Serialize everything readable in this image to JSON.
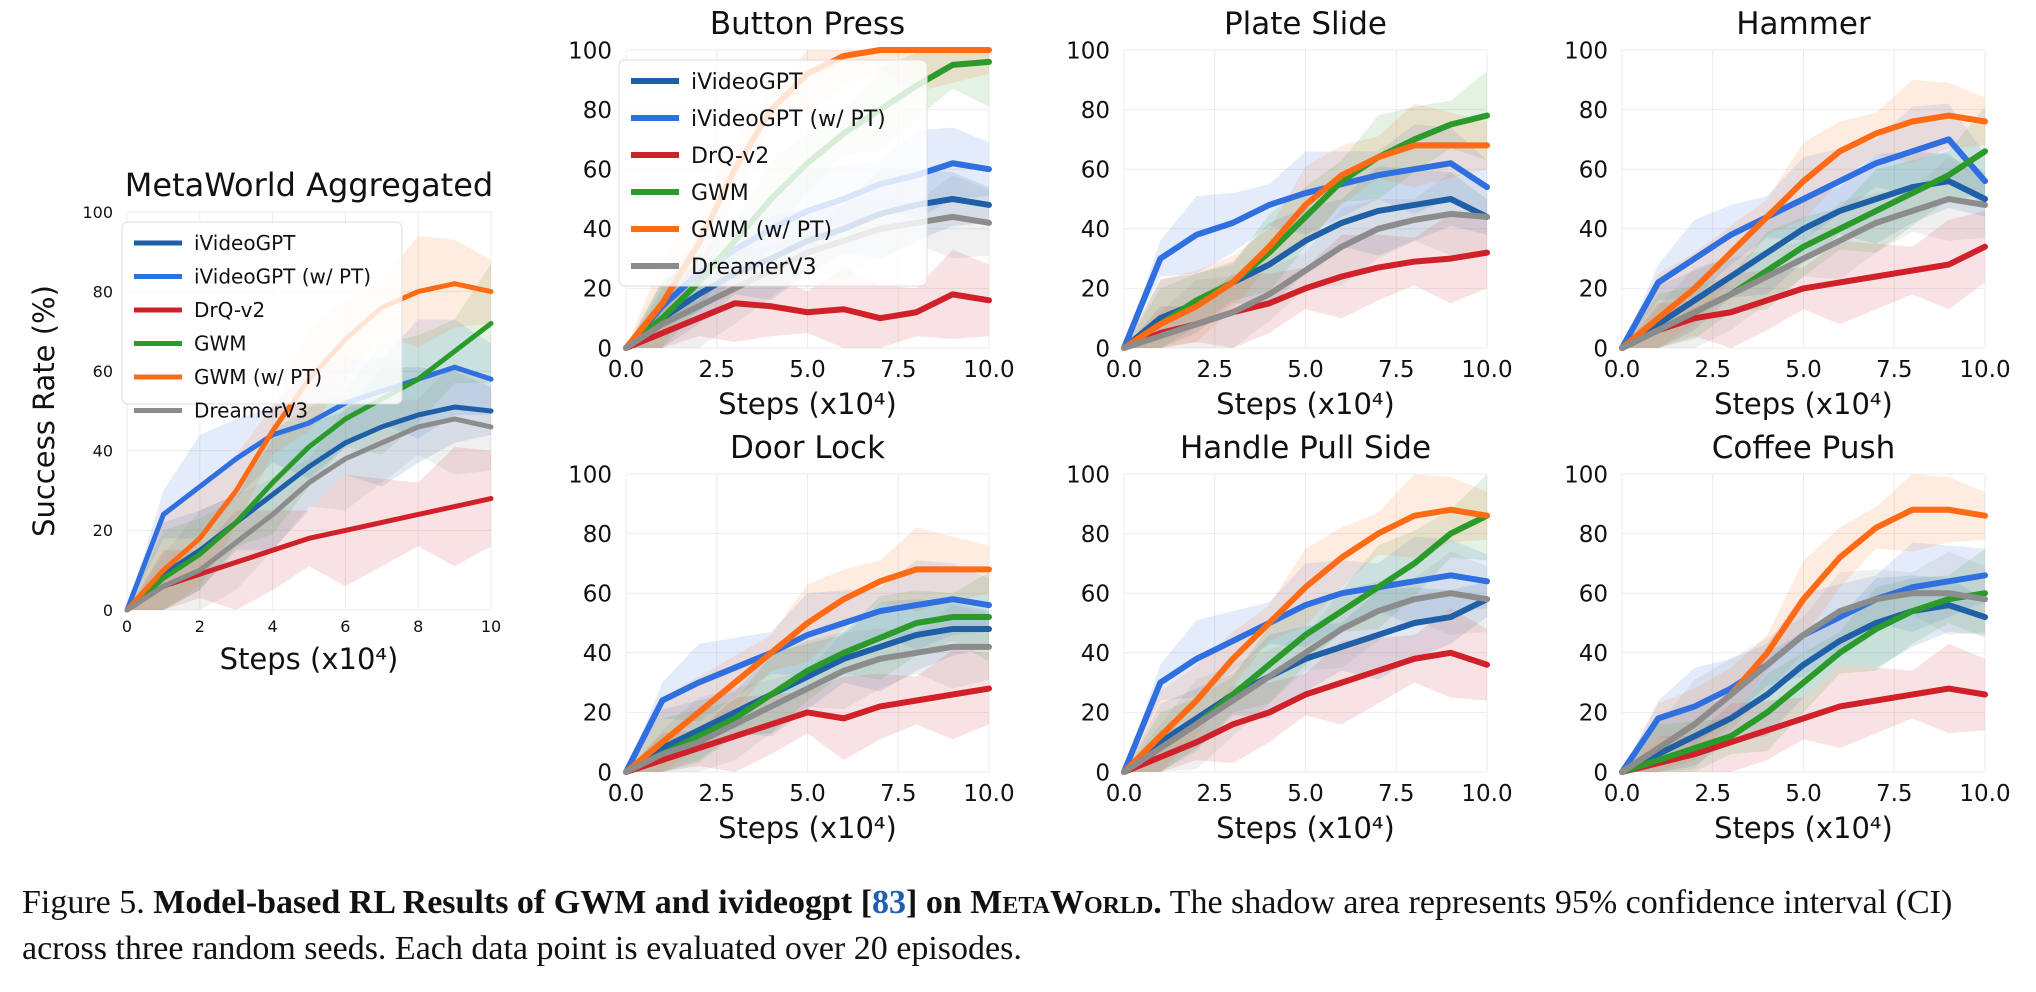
{
  "caption": {
    "label": "Figure 5.",
    "bold_pre": "Model-based RL Results of GWM and ivideogpt [",
    "ref": "83",
    "bold_mid": "] on ",
    "bold_sc": "MetaWorld.",
    "text": "The shadow area represents 95% confidence interval (CI) across three random seeds. Each data point is evaluated over 20 episodes."
  },
  "series_styles": [
    {
      "name": "iVideoGPT",
      "color": "#1f5fa8"
    },
    {
      "name": "iVideoGPT (w/ PT)",
      "color": "#2f6fe0"
    },
    {
      "name": "DrQ-v2",
      "color": "#d0202a"
    },
    {
      "name": "GWM",
      "color": "#2a9a2a"
    },
    {
      "name": "GWM (w/ PT)",
      "color": "#ff6a14"
    },
    {
      "name": "DreamerV3",
      "color": "#8c8c8c"
    }
  ],
  "chart_data": [
    {
      "type": "line",
      "title": "MetaWorld Aggregated",
      "xlabel": "Steps (x10⁴)",
      "ylabel": "Success Rate (%)",
      "xlim": [
        0,
        10
      ],
      "ylim": [
        0,
        100
      ],
      "xticks": [
        "0",
        "2",
        "4",
        "6",
        "8",
        "10"
      ],
      "yticks": [
        "0",
        "20",
        "40",
        "60",
        "80",
        "100"
      ],
      "legend": "top-left",
      "grid": true,
      "x": [
        0,
        1,
        2,
        3,
        4,
        5,
        6,
        7,
        8,
        9,
        10
      ],
      "series": [
        {
          "name": "iVideoGPT",
          "values": [
            0,
            9,
            15,
            22,
            29,
            36,
            42,
            46,
            49,
            51,
            50
          ]
        },
        {
          "name": "iVideoGPT (w/ PT)",
          "values": [
            0,
            24,
            31,
            38,
            44,
            47,
            52,
            55,
            58,
            61,
            58
          ]
        },
        {
          "name": "DrQ-v2",
          "values": [
            0,
            6,
            9,
            12,
            15,
            18,
            20,
            22,
            24,
            26,
            28
          ]
        },
        {
          "name": "GWM",
          "values": [
            0,
            8,
            14,
            22,
            32,
            41,
            48,
            53,
            58,
            65,
            72
          ]
        },
        {
          "name": "GWM (w/ PT)",
          "values": [
            0,
            10,
            18,
            30,
            45,
            58,
            68,
            76,
            80,
            82,
            80
          ]
        },
        {
          "name": "DreamerV3",
          "values": [
            0,
            6,
            10,
            17,
            24,
            32,
            38,
            42,
            46,
            48,
            46
          ]
        }
      ]
    },
    {
      "type": "line",
      "title": "Button Press",
      "xlabel": "Steps (x10⁴)",
      "xlim": [
        0,
        10
      ],
      "ylim": [
        0,
        100
      ],
      "xticks": [
        "0.0",
        "2.5",
        "5.0",
        "7.5",
        "10.0"
      ],
      "yticks": [
        "0",
        "20",
        "40",
        "60",
        "80",
        "100"
      ],
      "legend": "top-left",
      "grid": true,
      "x": [
        0,
        1,
        2,
        3,
        4,
        5,
        6,
        7,
        8,
        9,
        10
      ],
      "series": [
        {
          "name": "iVideoGPT",
          "values": [
            0,
            10,
            18,
            25,
            30,
            36,
            40,
            45,
            48,
            50,
            48
          ]
        },
        {
          "name": "iVideoGPT (w/ PT)",
          "values": [
            0,
            14,
            25,
            33,
            40,
            46,
            50,
            55,
            58,
            62,
            60
          ]
        },
        {
          "name": "DrQ-v2",
          "values": [
            0,
            5,
            10,
            15,
            14,
            12,
            13,
            10,
            12,
            18,
            16
          ]
        },
        {
          "name": "GWM",
          "values": [
            0,
            10,
            22,
            36,
            50,
            62,
            72,
            80,
            88,
            95,
            96
          ]
        },
        {
          "name": "GWM (w/ PT)",
          "values": [
            0,
            15,
            35,
            60,
            80,
            92,
            98,
            100,
            100,
            100,
            100
          ]
        },
        {
          "name": "DreamerV3",
          "values": [
            0,
            8,
            14,
            20,
            26,
            32,
            36,
            40,
            42,
            44,
            42
          ]
        }
      ]
    },
    {
      "type": "line",
      "title": "Plate Slide",
      "xlabel": "Steps (x10⁴)",
      "xlim": [
        0,
        10
      ],
      "ylim": [
        0,
        100
      ],
      "xticks": [
        "0.0",
        "2.5",
        "5.0",
        "7.5",
        "10.0"
      ],
      "yticks": [
        "0",
        "20",
        "40",
        "60",
        "80",
        "100"
      ],
      "grid": true,
      "x": [
        0,
        1,
        2,
        3,
        4,
        5,
        6,
        7,
        8,
        9,
        10
      ],
      "series": [
        {
          "name": "iVideoGPT",
          "values": [
            0,
            10,
            15,
            22,
            28,
            36,
            42,
            46,
            48,
            50,
            44
          ]
        },
        {
          "name": "iVideoGPT (w/ PT)",
          "values": [
            0,
            30,
            38,
            42,
            48,
            52,
            55,
            58,
            60,
            62,
            54
          ]
        },
        {
          "name": "DrQ-v2",
          "values": [
            0,
            5,
            8,
            12,
            15,
            20,
            24,
            27,
            29,
            30,
            32
          ]
        },
        {
          "name": "GWM",
          "values": [
            0,
            8,
            16,
            22,
            32,
            44,
            56,
            64,
            70,
            75,
            78
          ]
        },
        {
          "name": "GWM (w/ PT)",
          "values": [
            0,
            8,
            14,
            22,
            34,
            48,
            58,
            64,
            68,
            68,
            68
          ]
        },
        {
          "name": "DreamerV3",
          "values": [
            0,
            4,
            8,
            12,
            18,
            26,
            34,
            40,
            43,
            45,
            44
          ]
        }
      ]
    },
    {
      "type": "line",
      "title": "Hammer",
      "xlabel": "Steps (x10⁴)",
      "xlim": [
        0,
        10
      ],
      "ylim": [
        0,
        100
      ],
      "xticks": [
        "0.0",
        "2.5",
        "5.0",
        "7.5",
        "10.0"
      ],
      "yticks": [
        "0",
        "20",
        "40",
        "60",
        "80",
        "100"
      ],
      "grid": true,
      "x": [
        0,
        1,
        2,
        3,
        4,
        5,
        6,
        7,
        8,
        9,
        10
      ],
      "series": [
        {
          "name": "iVideoGPT",
          "values": [
            0,
            8,
            16,
            24,
            32,
            40,
            46,
            50,
            54,
            56,
            50
          ]
        },
        {
          "name": "iVideoGPT (w/ PT)",
          "values": [
            0,
            22,
            30,
            38,
            44,
            50,
            56,
            62,
            66,
            70,
            56
          ]
        },
        {
          "name": "DrQ-v2",
          "values": [
            0,
            6,
            10,
            12,
            16,
            20,
            22,
            24,
            26,
            28,
            34
          ]
        },
        {
          "name": "GWM",
          "values": [
            0,
            6,
            12,
            18,
            26,
            34,
            40,
            46,
            52,
            58,
            66
          ]
        },
        {
          "name": "GWM (w/ PT)",
          "values": [
            0,
            10,
            20,
            32,
            44,
            56,
            66,
            72,
            76,
            78,
            76
          ]
        },
        {
          "name": "DreamerV3",
          "values": [
            0,
            6,
            12,
            18,
            24,
            30,
            36,
            42,
            46,
            50,
            48
          ]
        }
      ]
    },
    {
      "type": "line",
      "title": "Door Lock",
      "xlabel": "Steps (x10⁴)",
      "xlim": [
        0,
        10
      ],
      "ylim": [
        0,
        100
      ],
      "xticks": [
        "0.0",
        "2.5",
        "5.0",
        "7.5",
        "10.0"
      ],
      "yticks": [
        "0",
        "20",
        "40",
        "60",
        "80",
        "100"
      ],
      "grid": true,
      "x": [
        0,
        1,
        2,
        3,
        4,
        5,
        6,
        7,
        8,
        9,
        10
      ],
      "series": [
        {
          "name": "iVideoGPT",
          "values": [
            0,
            8,
            14,
            20,
            26,
            32,
            38,
            42,
            46,
            48,
            48
          ]
        },
        {
          "name": "iVideoGPT (w/ PT)",
          "values": [
            0,
            24,
            30,
            35,
            40,
            46,
            50,
            54,
            56,
            58,
            56
          ]
        },
        {
          "name": "DrQ-v2",
          "values": [
            0,
            4,
            8,
            12,
            16,
            20,
            18,
            22,
            24,
            26,
            28
          ]
        },
        {
          "name": "GWM",
          "values": [
            0,
            6,
            12,
            18,
            26,
            34,
            40,
            45,
            50,
            52,
            52
          ]
        },
        {
          "name": "GWM (w/ PT)",
          "values": [
            0,
            10,
            20,
            30,
            40,
            50,
            58,
            64,
            68,
            68,
            68
          ]
        },
        {
          "name": "DreamerV3",
          "values": [
            0,
            6,
            10,
            16,
            22,
            28,
            34,
            38,
            40,
            42,
            42
          ]
        }
      ]
    },
    {
      "type": "line",
      "title": "Handle Pull Side",
      "xlabel": "Steps (x10⁴)",
      "xlim": [
        0,
        10
      ],
      "ylim": [
        0,
        100
      ],
      "xticks": [
        "0.0",
        "2.5",
        "5.0",
        "7.5",
        "10.0"
      ],
      "yticks": [
        "0",
        "20",
        "40",
        "60",
        "80",
        "100"
      ],
      "grid": true,
      "x": [
        0,
        1,
        2,
        3,
        4,
        5,
        6,
        7,
        8,
        9,
        10
      ],
      "series": [
        {
          "name": "iVideoGPT",
          "values": [
            0,
            10,
            18,
            26,
            32,
            38,
            42,
            46,
            50,
            52,
            58
          ]
        },
        {
          "name": "iVideoGPT (w/ PT)",
          "values": [
            0,
            30,
            38,
            44,
            50,
            56,
            60,
            62,
            64,
            66,
            64
          ]
        },
        {
          "name": "DrQ-v2",
          "values": [
            0,
            5,
            10,
            16,
            20,
            26,
            30,
            34,
            38,
            40,
            36
          ]
        },
        {
          "name": "GWM",
          "values": [
            0,
            8,
            16,
            26,
            36,
            46,
            54,
            62,
            70,
            80,
            86
          ]
        },
        {
          "name": "GWM (w/ PT)",
          "values": [
            0,
            12,
            24,
            38,
            50,
            62,
            72,
            80,
            86,
            88,
            86
          ]
        },
        {
          "name": "DreamerV3",
          "values": [
            0,
            8,
            16,
            24,
            32,
            40,
            48,
            54,
            58,
            60,
            58
          ]
        }
      ]
    },
    {
      "type": "line",
      "title": "Coffee Push",
      "xlabel": "Steps (x10⁴)",
      "xlim": [
        0,
        10
      ],
      "ylim": [
        0,
        100
      ],
      "xticks": [
        "0.0",
        "2.5",
        "5.0",
        "7.5",
        "10.0"
      ],
      "yticks": [
        "0",
        "20",
        "40",
        "60",
        "80",
        "100"
      ],
      "grid": true,
      "x": [
        0,
        1,
        2,
        3,
        4,
        5,
        6,
        7,
        8,
        9,
        10
      ],
      "series": [
        {
          "name": "iVideoGPT",
          "values": [
            0,
            6,
            12,
            18,
            26,
            36,
            44,
            50,
            54,
            56,
            52
          ]
        },
        {
          "name": "iVideoGPT (w/ PT)",
          "values": [
            0,
            18,
            22,
            28,
            36,
            46,
            52,
            58,
            62,
            64,
            66
          ]
        },
        {
          "name": "DrQ-v2",
          "values": [
            0,
            3,
            6,
            10,
            14,
            18,
            22,
            24,
            26,
            28,
            26
          ]
        },
        {
          "name": "GWM",
          "values": [
            0,
            4,
            8,
            12,
            20,
            30,
            40,
            48,
            54,
            58,
            60
          ]
        },
        {
          "name": "GWM (w/ PT)",
          "values": [
            0,
            8,
            16,
            26,
            40,
            58,
            72,
            82,
            88,
            88,
            86
          ]
        },
        {
          "name": "DreamerV3",
          "values": [
            0,
            8,
            16,
            26,
            36,
            46,
            54,
            58,
            60,
            60,
            58
          ]
        }
      ]
    }
  ]
}
